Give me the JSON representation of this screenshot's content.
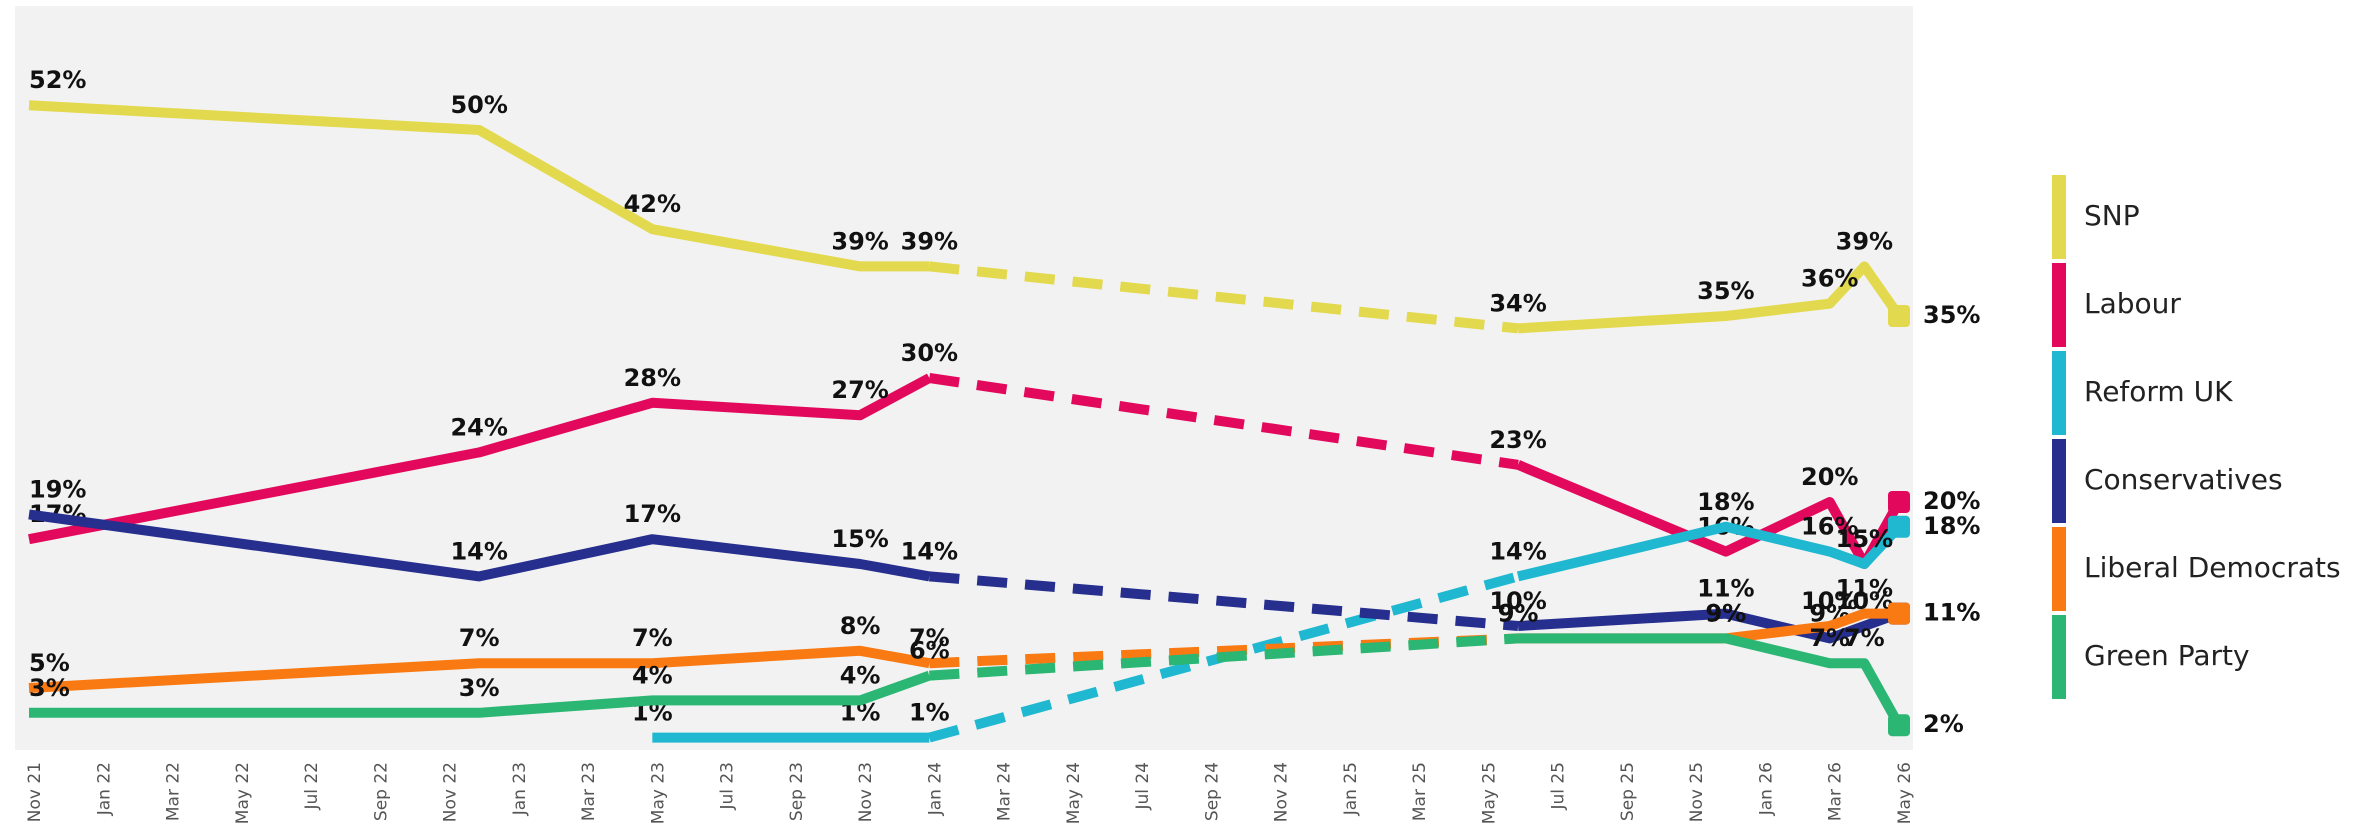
{
  "chart_data": {
    "type": "line",
    "x": [
      "Nov 21",
      "Dec 22",
      "May 23",
      "Nov 23",
      "Jan 24",
      "Jun 25",
      "Dec 25",
      "Mar 26",
      "Apr 26",
      "May 26"
    ],
    "xlim": [
      "Nov 21",
      "May 26"
    ],
    "xticks": [
      "Nov 21",
      "Jan 22",
      "Mar 22",
      "May 22",
      "Jul 22",
      "Sep 22",
      "Nov 22",
      "Jan 23",
      "Mar 23",
      "May 23",
      "Jul 23",
      "Sep 23",
      "Nov 23",
      "Jan 24",
      "Mar 24",
      "May 24",
      "Jul 24",
      "Sep 24",
      "Nov 24",
      "Jan 25",
      "Mar 25",
      "May 25",
      "Jul 25",
      "Sep 25",
      "Nov 25",
      "Jan 26",
      "Mar 26",
      "May 26"
    ],
    "ylim": [
      0,
      60
    ],
    "dashed_between": [
      "Jan 24",
      "Jun 25"
    ],
    "series": [
      {
        "name": "SNP",
        "color": "#e3d94e",
        "values": [
          52,
          50,
          42,
          39,
          39,
          34,
          35,
          36,
          39,
          35
        ],
        "value_labels": [
          "52%",
          "50%",
          "42%",
          "39%",
          "39%",
          "34%",
          "35%",
          "36%",
          "39%",
          "35%"
        ]
      },
      {
        "name": "Labour",
        "color": "#e2095c",
        "values": [
          17,
          24,
          28,
          27,
          30,
          23,
          16,
          20,
          15,
          20
        ],
        "value_labels": [
          "17%",
          "24%",
          "28%",
          "27%",
          "30%",
          "23%",
          "16%",
          "20%",
          "15%",
          "20%"
        ]
      },
      {
        "name": "Reform UK",
        "color": "#1fb8d0",
        "values": [
          null,
          null,
          1,
          1,
          1,
          14,
          18,
          16,
          15,
          18
        ],
        "value_labels": [
          null,
          null,
          "1%",
          "1%",
          "1%",
          "14%",
          "18%",
          "16%",
          "15%",
          "18%"
        ]
      },
      {
        "name": "Conservatives",
        "color": "#262e8e",
        "values": [
          19,
          14,
          17,
          15,
          14,
          10,
          11,
          9,
          10,
          11
        ],
        "value_labels": [
          "19%",
          "14%",
          "17%",
          "15%",
          "14%",
          "10%",
          "11%",
          "9%",
          "10%",
          "11%"
        ]
      },
      {
        "name": "Liberal Democrats",
        "color": "#f97a13",
        "values": [
          5,
          7,
          7,
          8,
          7,
          9,
          9,
          10,
          11,
          11
        ],
        "value_labels": [
          "5%",
          "7%",
          "7%",
          "8%",
          "7%",
          "9%",
          "9%",
          "10%",
          "11%",
          "11%"
        ]
      },
      {
        "name": "Green Party",
        "color": "#2bb673",
        "values": [
          3,
          3,
          4,
          4,
          6,
          9,
          9,
          7,
          7,
          2
        ],
        "value_labels": [
          "3%",
          "3%",
          "4%",
          "4%",
          "6%",
          "9%",
          "9%",
          "7%",
          "7%",
          "2%"
        ]
      }
    ]
  }
}
